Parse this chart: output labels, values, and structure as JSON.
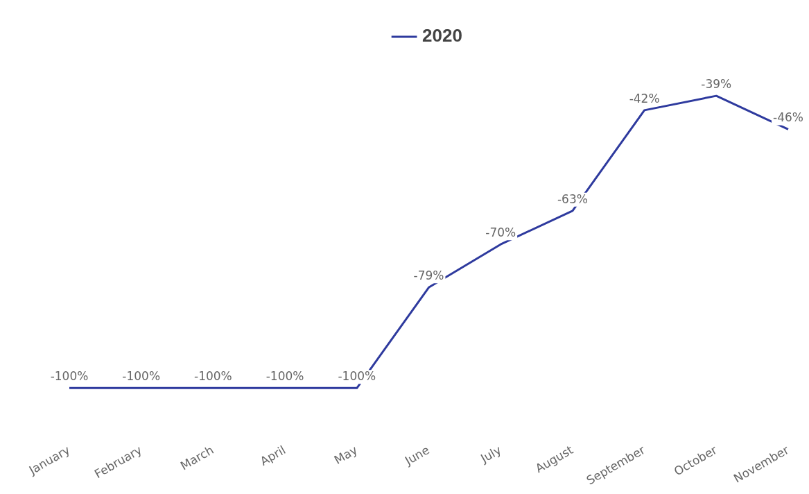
{
  "chart_data": {
    "type": "line",
    "categories": [
      "January",
      "February",
      "March",
      "April",
      "May",
      "June",
      "July",
      "August",
      "September",
      "October",
      "November"
    ],
    "series": [
      {
        "name": "2020",
        "color": "#2e3a9e",
        "values": [
          -100,
          -100,
          -100,
          -100,
          -100,
          -79,
          -70,
          -63,
          -42,
          -39,
          -46
        ],
        "value_labels": [
          "-100%",
          "-100%",
          "-100%",
          "-100%",
          "-100%",
          "-79%",
          "-70%",
          "-63%",
          "-42%",
          "-39%",
          "-46%"
        ]
      }
    ],
    "tick_labels": "x",
    "grid": false,
    "legend": "top",
    "marker": "none",
    "line_style": "solid"
  }
}
